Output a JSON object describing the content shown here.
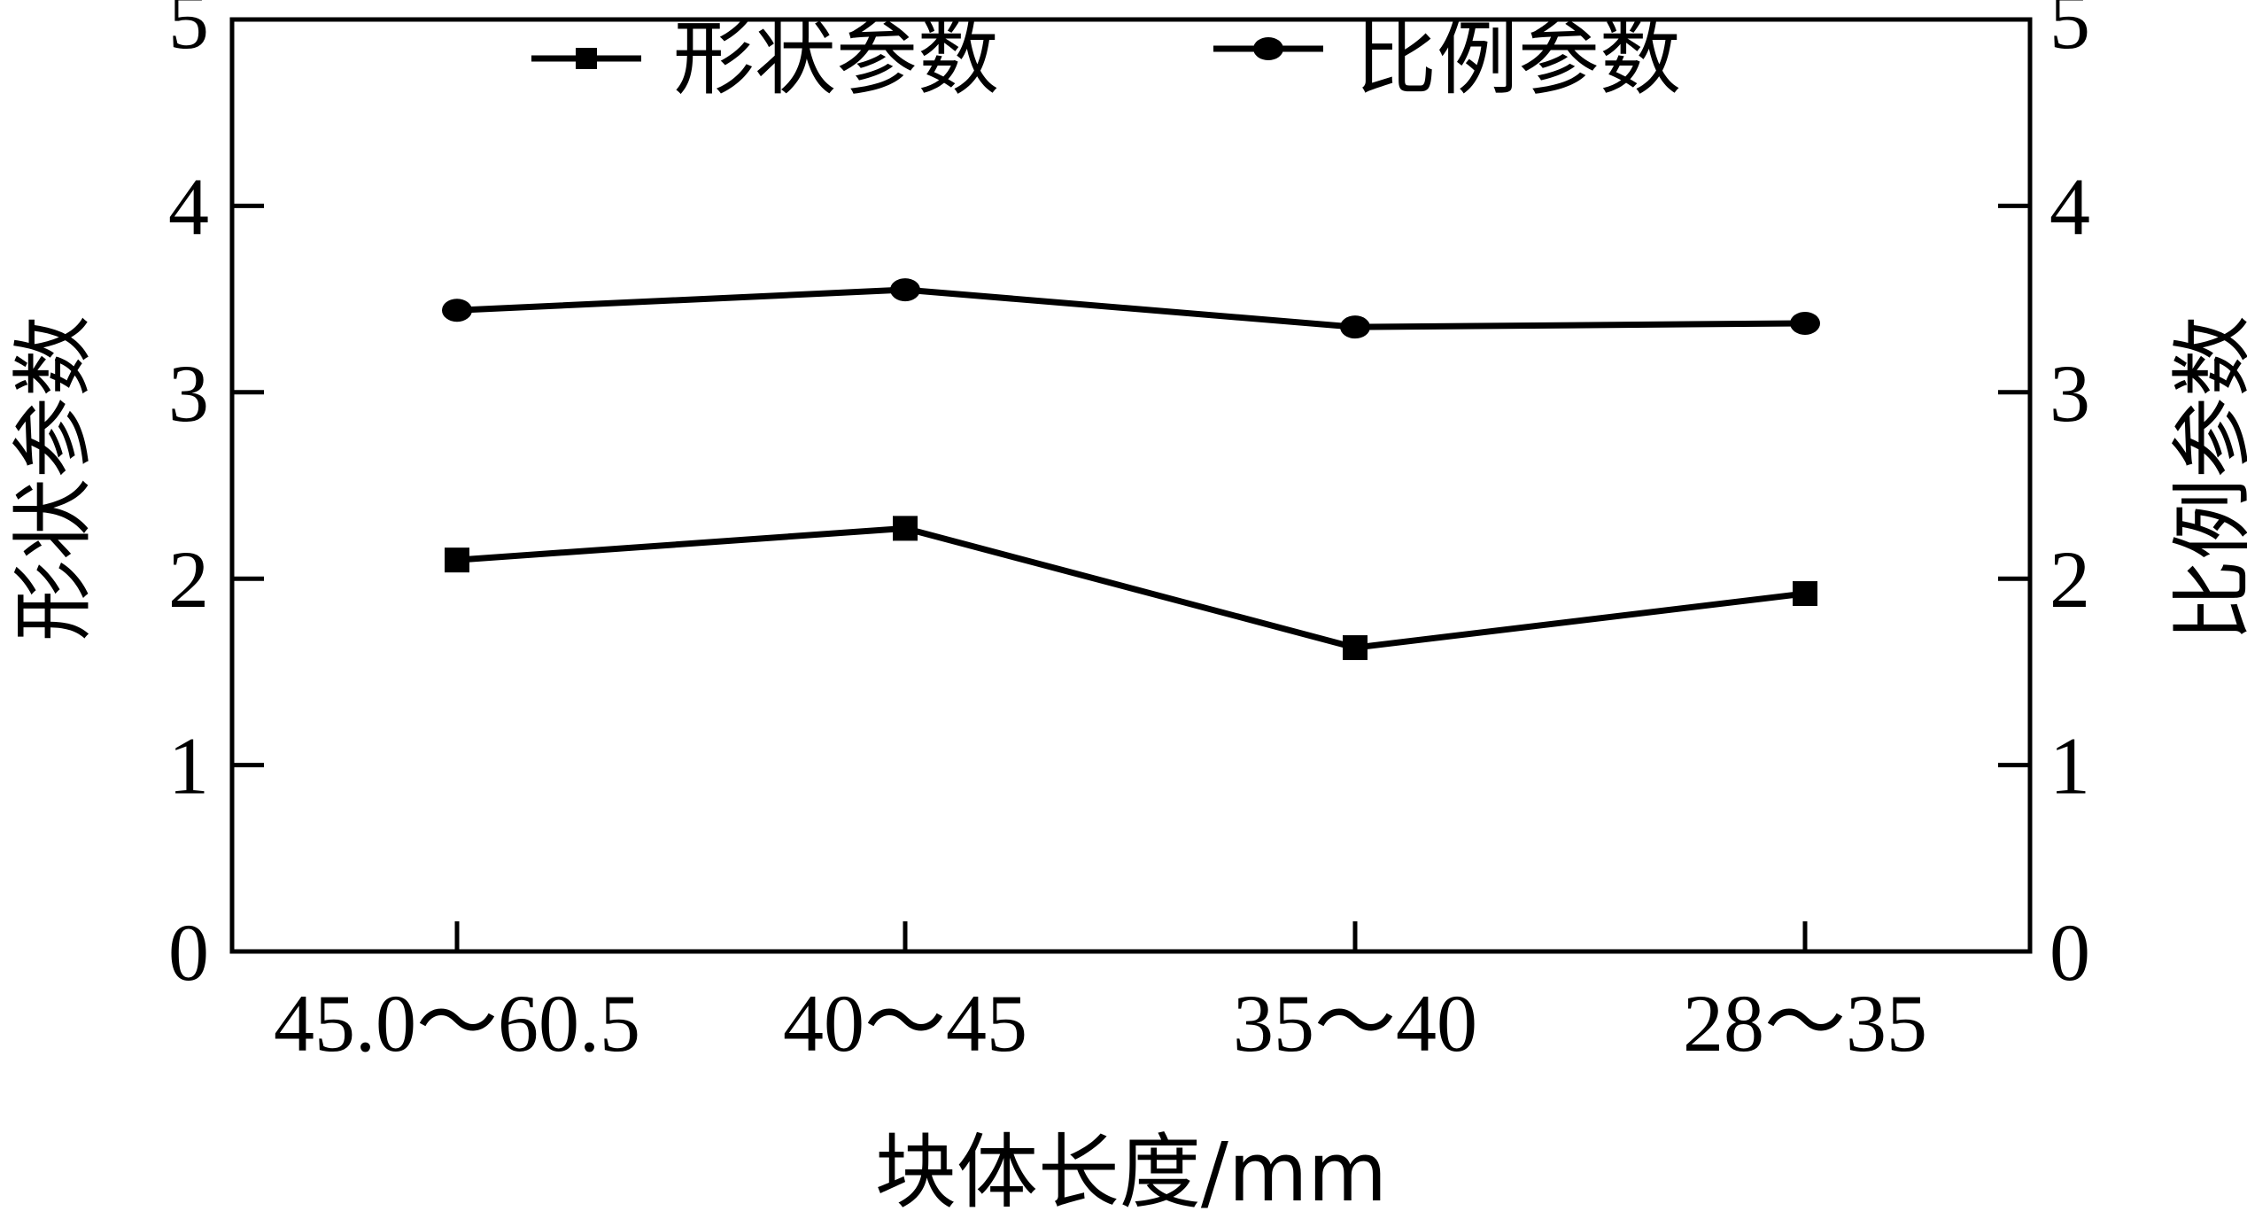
{
  "chart_data": {
    "type": "line",
    "categories": [
      "45.0～60.5",
      "40～45",
      "35～40",
      "28～35"
    ],
    "series": [
      {
        "name": "形状参数",
        "marker": "square",
        "axis": "left",
        "values": [
          2.1,
          2.27,
          1.63,
          1.92
        ]
      },
      {
        "name": "比例参数",
        "marker": "circle",
        "axis": "right",
        "values": [
          3.44,
          3.55,
          3.35,
          3.37
        ]
      }
    ],
    "xlabel": "块体长度/mm",
    "ylabel_left": "形状参数",
    "ylabel_right": "比例参数",
    "ylim_left": [
      0,
      5
    ],
    "ylim_right": [
      0,
      5
    ],
    "yticks": [
      "0",
      "1",
      "2",
      "3",
      "4",
      "5"
    ],
    "legend_position": "top-center",
    "grid": false,
    "line_color": "#000000"
  }
}
